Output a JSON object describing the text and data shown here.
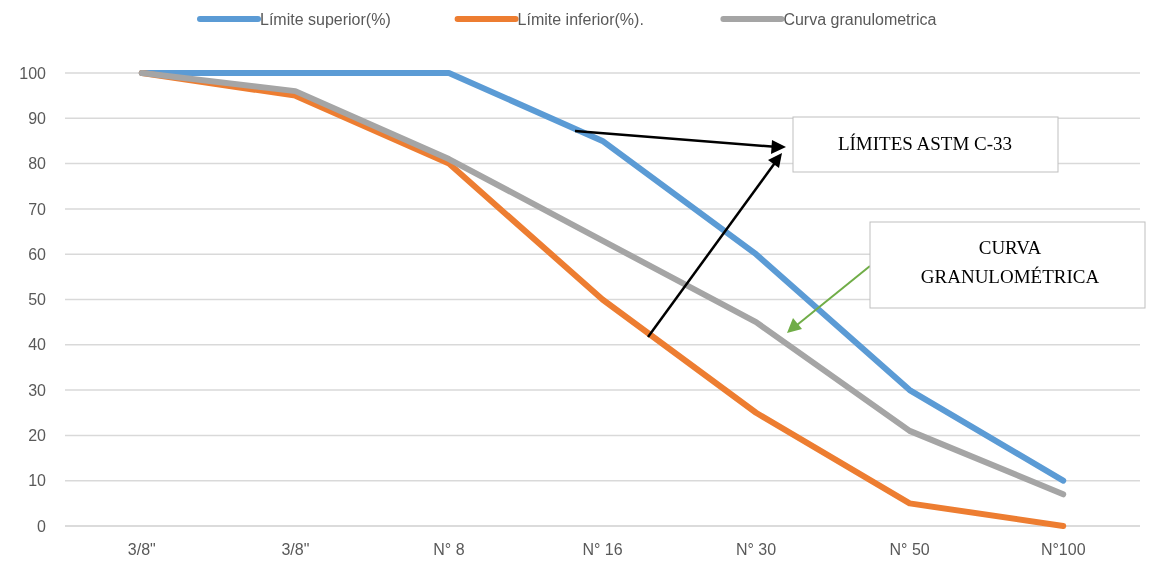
{
  "chart_data": {
    "type": "line",
    "categories": [
      "3/8\"",
      "3/8\"",
      "N° 8",
      "N° 16",
      "N° 30",
      "N° 50",
      "N°100"
    ],
    "series": [
      {
        "name": "Límite superior(%)",
        "color": "#5b9bd5",
        "values": [
          100,
          100,
          100,
          85,
          60,
          30,
          10
        ]
      },
      {
        "name": "Límite inferior(%).",
        "color": "#ed7d31",
        "values": [
          100,
          95,
          80,
          50,
          25,
          5,
          0
        ]
      },
      {
        "name": "Curva granulometrica",
        "color": "#a5a5a5",
        "values": [
          100,
          96,
          81,
          63,
          45,
          21,
          7
        ]
      }
    ],
    "ylim": [
      0,
      100
    ],
    "yticks": [
      0,
      10,
      20,
      30,
      40,
      50,
      60,
      70,
      80,
      90,
      100
    ],
    "grid": "y",
    "legend": "top",
    "marker": "none",
    "line_style": "solid",
    "annotations": [
      "LÍMITES ASTM C-33",
      "CURVA GRANULOMÉTRICA"
    ]
  }
}
